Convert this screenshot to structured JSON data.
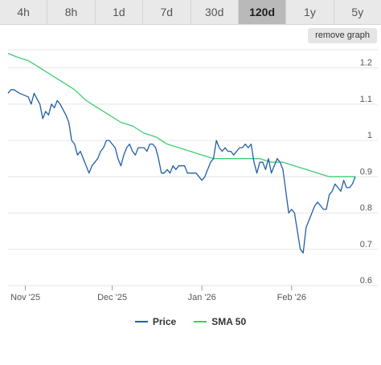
{
  "tabs": [
    {
      "label": "4h",
      "active": false
    },
    {
      "label": "8h",
      "active": false
    },
    {
      "label": "1d",
      "active": false
    },
    {
      "label": "7d",
      "active": false
    },
    {
      "label": "30d",
      "active": false
    },
    {
      "label": "120d",
      "active": true
    },
    {
      "label": "1y",
      "active": false
    },
    {
      "label": "5y",
      "active": false
    }
  ],
  "remove_graph_label": "remove graph",
  "legend": {
    "price_label": "Price",
    "sma_label": "SMA 50"
  },
  "colors": {
    "price": "#1f5fa8",
    "sma": "#3ccf6e",
    "grid": "#e6e6e6",
    "active_tab": "#b9b9b9"
  },
  "chart_data": {
    "type": "line",
    "title": "",
    "xlabel": "",
    "ylabel": "",
    "ylim": [
      0.6,
      1.25
    ],
    "y_ticks": [
      0.6,
      0.7,
      0.8,
      0.9,
      1,
      1.1,
      1.2
    ],
    "y_tick_labels": [
      "0.6",
      "0.7",
      "0.8",
      "0.9",
      "1",
      "1.1",
      "1.2"
    ],
    "x_range": [
      "2025-10-26",
      "2026-02-23"
    ],
    "x_ticks": [
      {
        "date": "2025-11-01",
        "label": "Nov '25"
      },
      {
        "date": "2025-12-01",
        "label": "Dec '25"
      },
      {
        "date": "2026-01-01",
        "label": "Jan '26"
      },
      {
        "date": "2026-02-01",
        "label": "Feb '26"
      }
    ],
    "grid": true,
    "legend_position": "bottom-center",
    "series": [
      {
        "name": "Price",
        "points": [
          [
            "2025-10-26",
            1.13
          ],
          [
            "2025-10-27",
            1.14
          ],
          [
            "2025-10-28",
            1.14
          ],
          [
            "2025-10-30",
            1.13
          ],
          [
            "2025-11-02",
            1.12
          ],
          [
            "2025-11-03",
            1.1
          ],
          [
            "2025-11-04",
            1.13
          ],
          [
            "2025-11-06",
            1.1
          ],
          [
            "2025-11-07",
            1.06
          ],
          [
            "2025-11-08",
            1.08
          ],
          [
            "2025-11-09",
            1.07
          ],
          [
            "2025-11-10",
            1.1
          ],
          [
            "2025-11-11",
            1.09
          ],
          [
            "2025-11-12",
            1.11
          ],
          [
            "2025-11-13",
            1.1
          ],
          [
            "2025-11-15",
            1.07
          ],
          [
            "2025-11-16",
            1.05
          ],
          [
            "2025-11-17",
            1.0
          ],
          [
            "2025-11-18",
            0.99
          ],
          [
            "2025-11-19",
            0.96
          ],
          [
            "2025-11-20",
            0.97
          ],
          [
            "2025-11-22",
            0.93
          ],
          [
            "2025-11-23",
            0.91
          ],
          [
            "2025-11-24",
            0.93
          ],
          [
            "2025-11-25",
            0.94
          ],
          [
            "2025-11-26",
            0.95
          ],
          [
            "2025-11-27",
            0.97
          ],
          [
            "2025-11-28",
            0.98
          ],
          [
            "2025-11-29",
            1.0
          ],
          [
            "2025-11-30",
            1.0
          ],
          [
            "2025-12-01",
            0.99
          ],
          [
            "2025-12-02",
            0.98
          ],
          [
            "2025-12-03",
            0.95
          ],
          [
            "2025-12-04",
            0.93
          ],
          [
            "2025-12-05",
            0.96
          ],
          [
            "2025-12-06",
            0.98
          ],
          [
            "2025-12-07",
            0.99
          ],
          [
            "2025-12-08",
            0.97
          ],
          [
            "2025-12-09",
            0.96
          ],
          [
            "2025-12-10",
            0.98
          ],
          [
            "2025-12-11",
            0.98
          ],
          [
            "2025-12-12",
            0.98
          ],
          [
            "2025-12-13",
            0.97
          ],
          [
            "2025-12-14",
            0.99
          ],
          [
            "2025-12-15",
            0.99
          ],
          [
            "2025-12-16",
            0.98
          ],
          [
            "2025-12-17",
            0.95
          ],
          [
            "2025-12-18",
            0.91
          ],
          [
            "2025-12-19",
            0.91
          ],
          [
            "2025-12-20",
            0.92
          ],
          [
            "2025-12-21",
            0.91
          ],
          [
            "2025-12-22",
            0.93
          ],
          [
            "2025-12-23",
            0.92
          ],
          [
            "2025-12-24",
            0.93
          ],
          [
            "2025-12-25",
            0.93
          ],
          [
            "2025-12-26",
            0.93
          ],
          [
            "2025-12-27",
            0.91
          ],
          [
            "2025-12-28",
            0.91
          ],
          [
            "2025-12-29",
            0.91
          ],
          [
            "2025-12-30",
            0.91
          ],
          [
            "2025-12-31",
            0.9
          ],
          [
            "2026-01-01",
            0.89
          ],
          [
            "2026-01-02",
            0.9
          ],
          [
            "2026-01-03",
            0.92
          ],
          [
            "2026-01-04",
            0.94
          ],
          [
            "2026-01-05",
            0.95
          ],
          [
            "2026-01-06",
            1.0
          ],
          [
            "2026-01-07",
            0.98
          ],
          [
            "2026-01-08",
            0.97
          ],
          [
            "2026-01-09",
            0.98
          ],
          [
            "2026-01-10",
            0.97
          ],
          [
            "2026-01-11",
            0.97
          ],
          [
            "2026-01-12",
            0.96
          ],
          [
            "2026-01-13",
            0.97
          ],
          [
            "2026-01-14",
            0.98
          ],
          [
            "2026-01-15",
            0.98
          ],
          [
            "2026-01-16",
            0.99
          ],
          [
            "2026-01-17",
            0.98
          ],
          [
            "2026-01-18",
            0.99
          ],
          [
            "2026-01-19",
            0.94
          ],
          [
            "2026-01-20",
            0.91
          ],
          [
            "2026-01-21",
            0.94
          ],
          [
            "2026-01-22",
            0.94
          ],
          [
            "2026-01-23",
            0.92
          ],
          [
            "2026-01-24",
            0.95
          ],
          [
            "2026-01-25",
            0.91
          ],
          [
            "2026-01-26",
            0.93
          ],
          [
            "2026-01-27",
            0.95
          ],
          [
            "2026-01-28",
            0.94
          ],
          [
            "2026-01-29",
            0.92
          ],
          [
            "2026-01-30",
            0.86
          ],
          [
            "2026-01-31",
            0.8
          ],
          [
            "2026-02-01",
            0.81
          ],
          [
            "2026-02-02",
            0.8
          ],
          [
            "2026-02-04",
            0.7
          ],
          [
            "2026-02-05",
            0.69
          ],
          [
            "2026-02-06",
            0.76
          ],
          [
            "2026-02-07",
            0.78
          ],
          [
            "2026-02-08",
            0.8
          ],
          [
            "2026-02-09",
            0.82
          ],
          [
            "2026-02-10",
            0.83
          ],
          [
            "2026-02-11",
            0.82
          ],
          [
            "2026-02-12",
            0.81
          ],
          [
            "2026-02-13",
            0.81
          ],
          [
            "2026-02-14",
            0.85
          ],
          [
            "2026-02-15",
            0.86
          ],
          [
            "2026-02-16",
            0.88
          ],
          [
            "2026-02-17",
            0.87
          ],
          [
            "2026-02-18",
            0.86
          ],
          [
            "2026-02-19",
            0.89
          ],
          [
            "2026-02-20",
            0.87
          ],
          [
            "2026-02-21",
            0.87
          ],
          [
            "2026-02-22",
            0.88
          ],
          [
            "2026-02-23",
            0.9
          ]
        ]
      },
      {
        "name": "SMA 50",
        "points": [
          [
            "2025-10-26",
            1.24
          ],
          [
            "2025-10-29",
            1.23
          ],
          [
            "2025-11-02",
            1.22
          ],
          [
            "2025-11-06",
            1.2
          ],
          [
            "2025-11-10",
            1.18
          ],
          [
            "2025-11-14",
            1.16
          ],
          [
            "2025-11-18",
            1.14
          ],
          [
            "2025-11-22",
            1.11
          ],
          [
            "2025-11-26",
            1.09
          ],
          [
            "2025-11-30",
            1.07
          ],
          [
            "2025-12-04",
            1.05
          ],
          [
            "2025-12-08",
            1.04
          ],
          [
            "2025-12-12",
            1.02
          ],
          [
            "2025-12-16",
            1.01
          ],
          [
            "2025-12-20",
            0.99
          ],
          [
            "2025-12-24",
            0.98
          ],
          [
            "2025-12-28",
            0.97
          ],
          [
            "2026-01-01",
            0.96
          ],
          [
            "2026-01-05",
            0.95
          ],
          [
            "2026-01-09",
            0.95
          ],
          [
            "2026-01-13",
            0.95
          ],
          [
            "2026-01-17",
            0.95
          ],
          [
            "2026-01-21",
            0.95
          ],
          [
            "2026-01-25",
            0.94
          ],
          [
            "2026-01-29",
            0.94
          ],
          [
            "2026-02-02",
            0.93
          ],
          [
            "2026-02-06",
            0.92
          ],
          [
            "2026-02-10",
            0.91
          ],
          [
            "2026-02-14",
            0.9
          ],
          [
            "2026-02-18",
            0.9
          ],
          [
            "2026-02-23",
            0.9
          ]
        ]
      }
    ]
  }
}
